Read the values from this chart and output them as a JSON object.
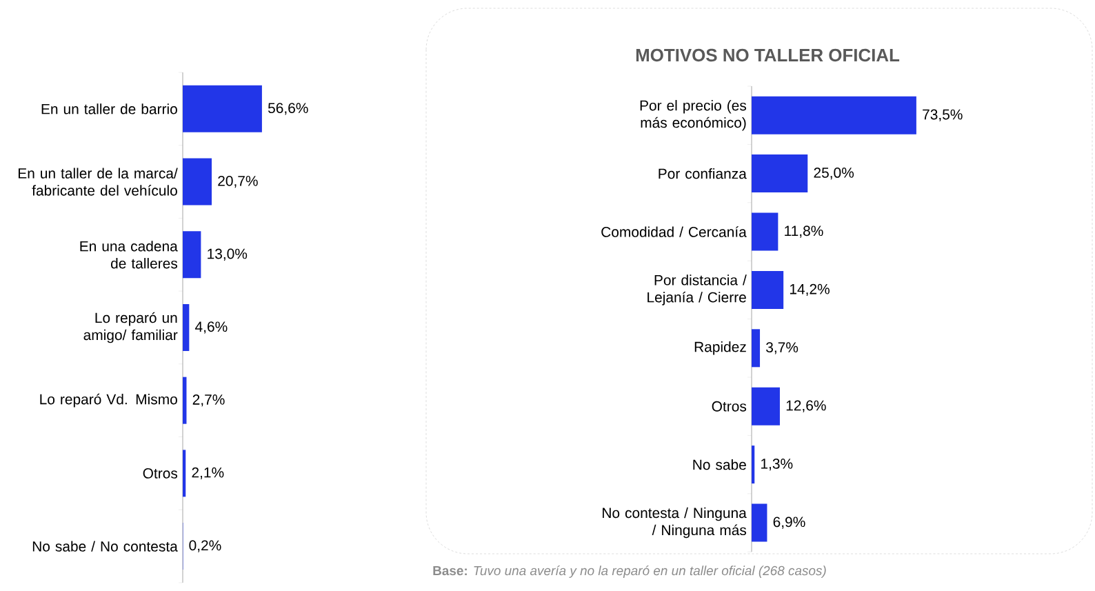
{
  "chart_data": [
    {
      "type": "bar",
      "orientation": "horizontal",
      "categories": [
        "En un taller de barrio",
        "En un taller de la marca/ fabricante del vehículo",
        "En una cadena de talleres",
        "Lo reparó un amigo/ familiar",
        "Lo reparó Vd. Mismo",
        "Otros",
        "No sabe / No contesta"
      ],
      "values": [
        56.6,
        20.7,
        13.0,
        4.6,
        2.7,
        2.1,
        0.2
      ],
      "value_labels": [
        "56,6%",
        "20,7%",
        "13,0%",
        "4,6%",
        "2,7%",
        "2,1%",
        "0,2%"
      ],
      "color": "#2236e8"
    },
    {
      "type": "bar",
      "orientation": "horizontal",
      "title": "MOTIVOS NO TALLER OFICIAL",
      "categories": [
        "Por el precio (es más económico)",
        "Por confianza",
        "Comodidad / Cercanía",
        "Por distancia / Lejanía / Cierre",
        "Rapidez",
        "Otros",
        "No sabe",
        "No contesta / Ninguna / Ninguna más"
      ],
      "values": [
        73.5,
        25.0,
        11.8,
        14.2,
        3.7,
        12.6,
        1.3,
        6.9
      ],
      "value_labels": [
        "73,5%",
        "25,0%",
        "11,8%",
        "14,2%",
        "3,7%",
        "12,6%",
        "1,3%",
        "6,9%"
      ],
      "color": "#2236e8",
      "annotations": [
        "**Base:** *Tuvo una avería y no la reparó en un taller oficial (268 casos)*"
      ]
    }
  ]
}
